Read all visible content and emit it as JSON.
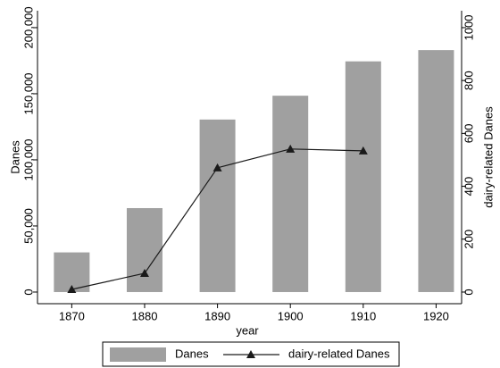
{
  "chart_data": {
    "type": "bar",
    "x_label": "year",
    "y_label": "Danes",
    "y2_label": "dairy-related Danes",
    "x": [
      1870,
      1880,
      1890,
      1900,
      1910,
      1920
    ],
    "xlim": [
      1865.3,
      1923.5
    ],
    "xticks": [
      1870,
      1880,
      1890,
      1900,
      1910,
      1920
    ],
    "ylim": [
      -8800,
      212800
    ],
    "yticks": [
      0,
      {
        "value": 50000,
        "label": "50,000"
      },
      {
        "value": 100000,
        "label": "100,000"
      },
      {
        "value": 150000,
        "label": "150,000"
      },
      {
        "value": 200000,
        "label": "200,000"
      }
    ],
    "y2lim": [
      -44,
      1064
    ],
    "y2ticks": [
      0,
      200,
      400,
      600,
      800,
      1000
    ],
    "series": [
      {
        "name": "Danes",
        "type": "bar",
        "color": "#a0a0a0",
        "values": [
          30000,
          63500,
          130500,
          148500,
          174500,
          183000
        ]
      },
      {
        "name": "dairy-related Danes",
        "type": "line",
        "axis": "y2",
        "color": "#1a1a1a",
        "values": [
          10,
          71,
          470,
          541,
          534,
          null
        ]
      }
    ]
  }
}
